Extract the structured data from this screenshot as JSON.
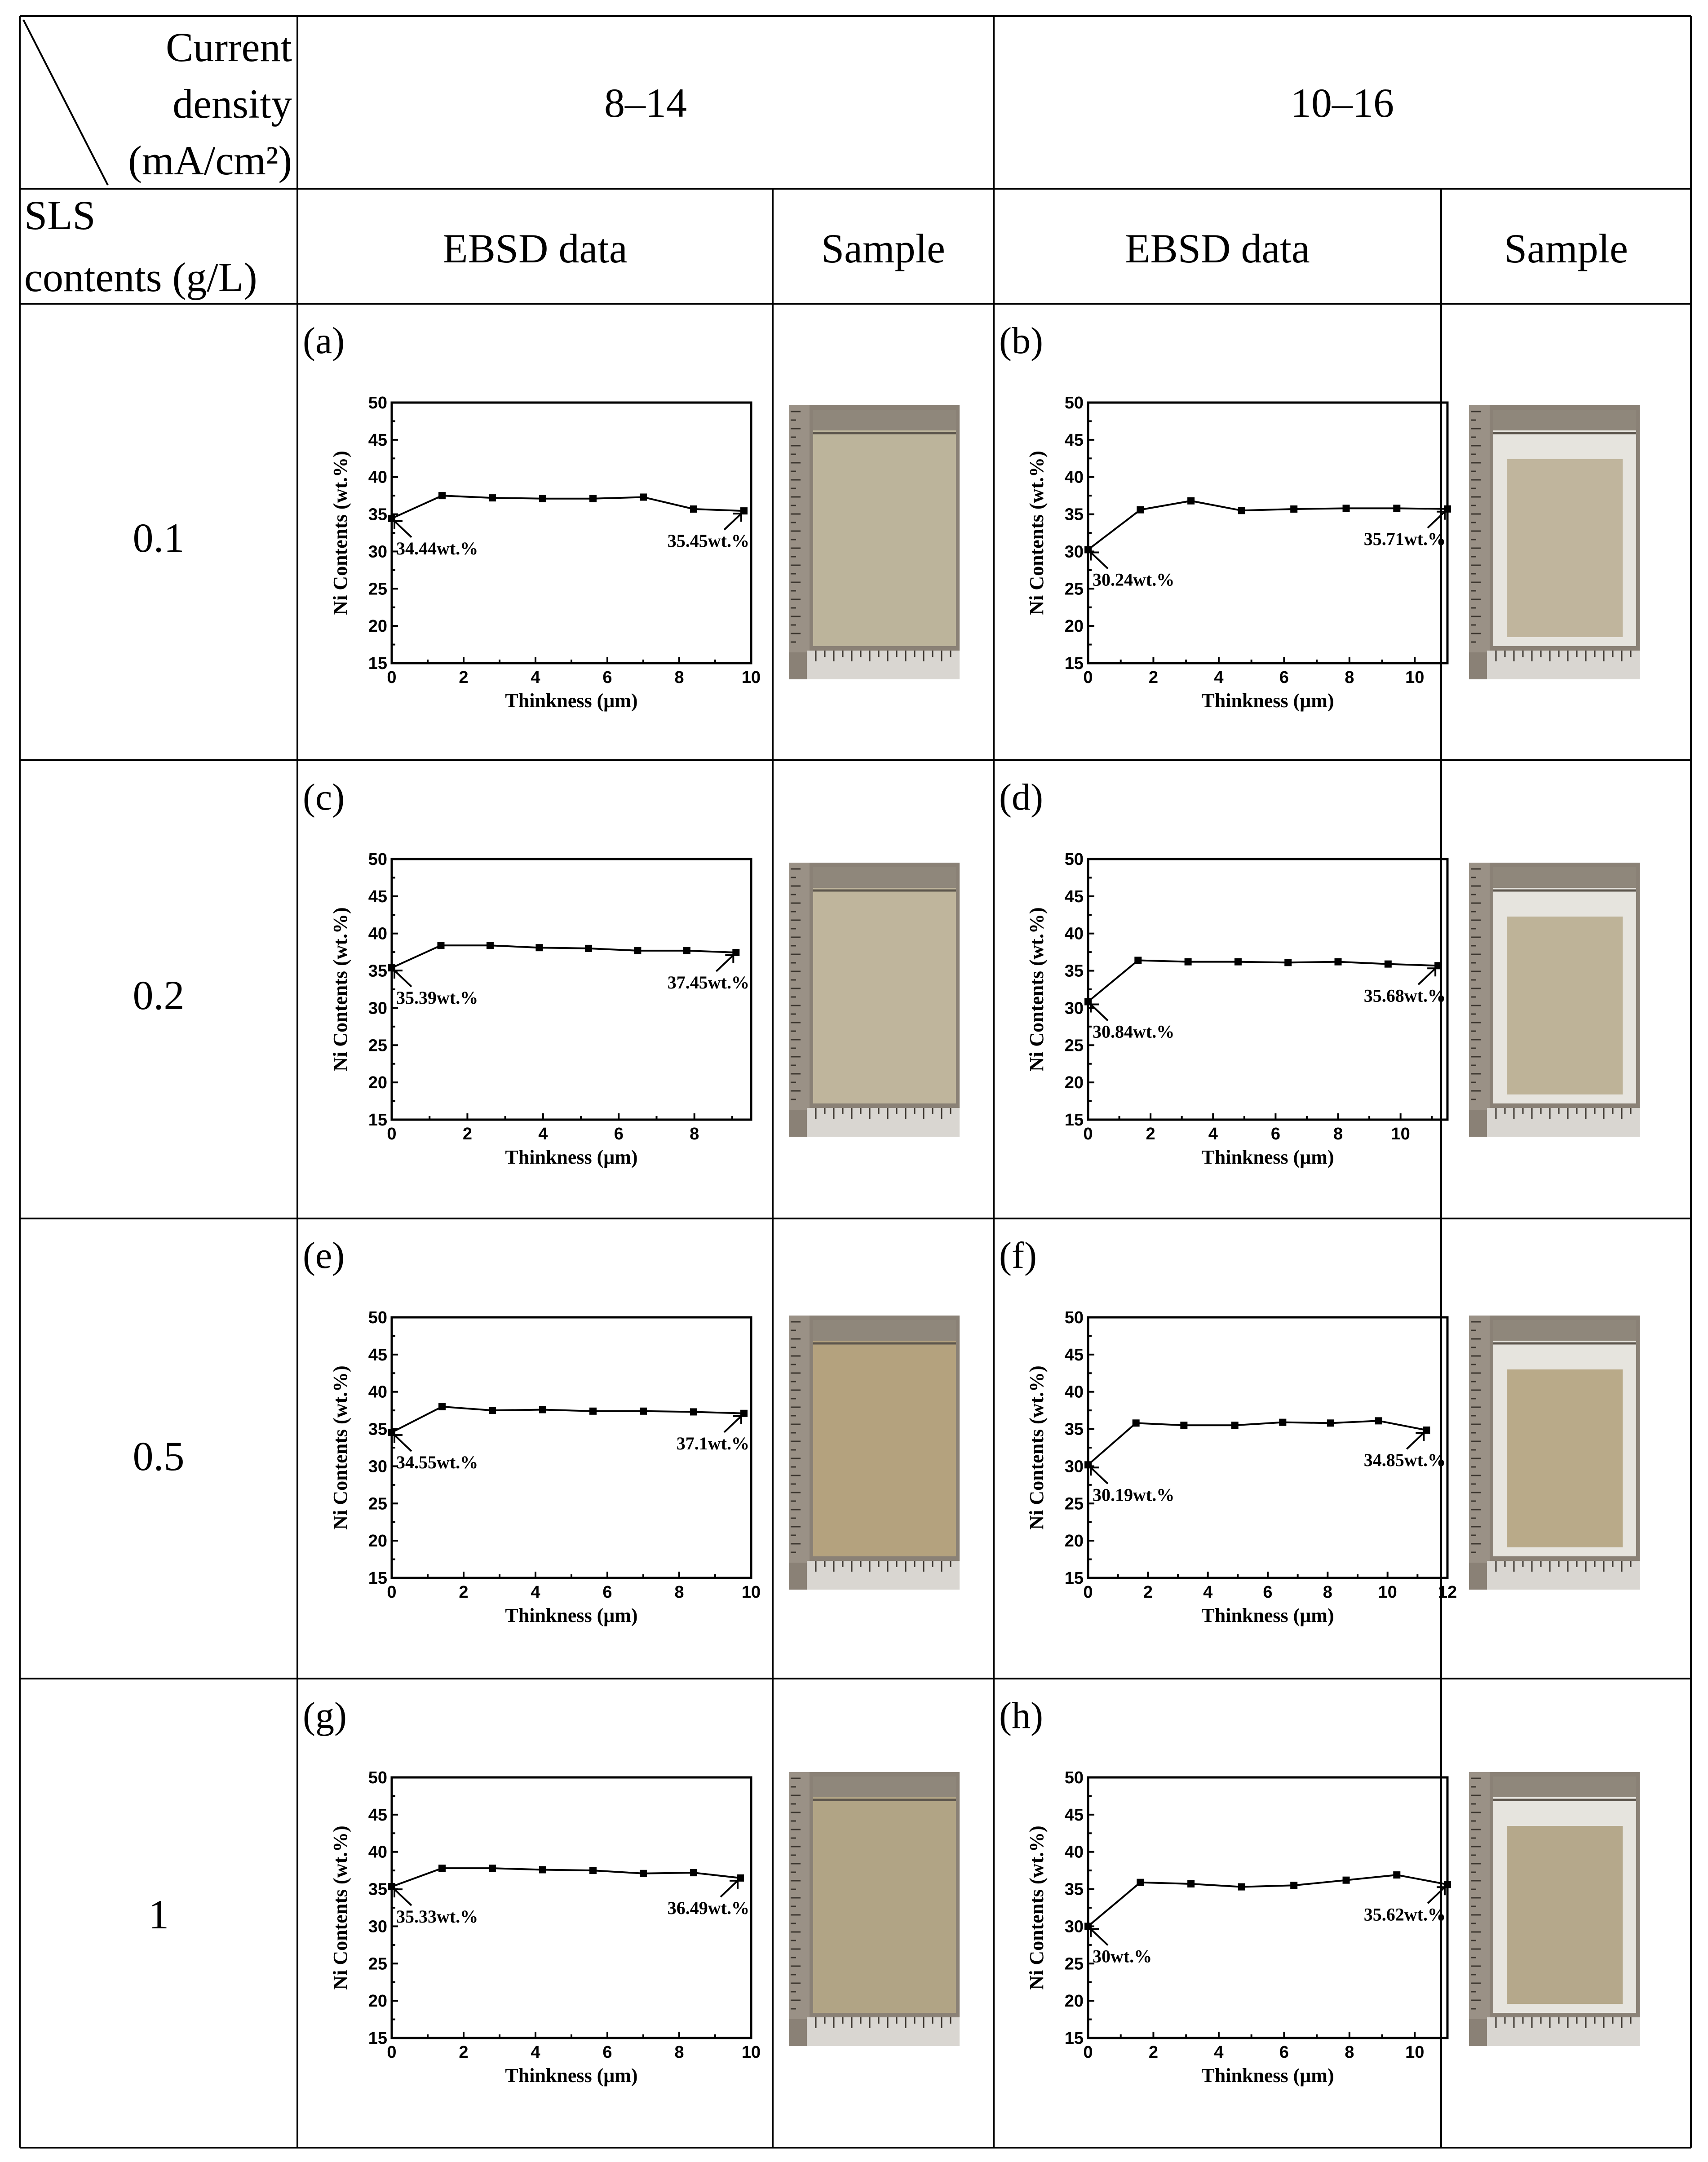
{
  "header": {
    "current_density_label": [
      "Current",
      "density",
      "(mA/cm²)"
    ],
    "density_1": "8–14",
    "density_2": "10–16",
    "sls_label": [
      "SLS",
      "contents (g/L)"
    ],
    "ebsd_label": "EBSD data",
    "sample_label": "Sample"
  },
  "rows": [
    "0.1",
    "0.2",
    "0.5",
    "1"
  ],
  "chart_data": [
    {
      "type": "line",
      "panel": "(a)",
      "xlabel": "Thinkness (μm)",
      "ylabel": "Ni Contents (wt.%)",
      "xlim": [
        0,
        10
      ],
      "ylim": [
        15,
        50
      ],
      "x": [
        0,
        1.4,
        2.8,
        4.2,
        5.6,
        7.0,
        8.4,
        9.8
      ],
      "y": [
        34.44,
        37.5,
        37.2,
        37.1,
        37.1,
        37.3,
        35.7,
        35.45
      ],
      "annotations": [
        "34.44wt.%",
        "35.45wt.%"
      ]
    },
    {
      "type": "line",
      "panel": "(b)",
      "xlabel": "Thinkness (μm)",
      "ylabel": "Ni Contents (wt.%)",
      "xlim": [
        0,
        11
      ],
      "ylim": [
        15,
        50
      ],
      "x": [
        0,
        1.6,
        3.15,
        4.7,
        6.3,
        7.9,
        9.45,
        11.0
      ],
      "y": [
        30.24,
        35.6,
        36.8,
        35.5,
        35.7,
        35.8,
        35.8,
        35.71
      ],
      "annotations": [
        "30.24wt.%",
        "35.71wt.%"
      ]
    },
    {
      "type": "line",
      "panel": "(c)",
      "xlabel": "Thinkness (μm)",
      "ylabel": "Ni Contents (wt.%)",
      "xlim": [
        0,
        9.5
      ],
      "ylim": [
        15,
        50
      ],
      "x": [
        0,
        1.3,
        2.6,
        3.9,
        5.2,
        6.5,
        7.8,
        9.1
      ],
      "y": [
        35.39,
        38.4,
        38.4,
        38.1,
        38.0,
        37.7,
        37.7,
        37.45
      ],
      "annotations": [
        "35.39wt.%",
        "37.45wt.%"
      ]
    },
    {
      "type": "line",
      "panel": "(d)",
      "xlabel": "Thinkness (μm)",
      "ylabel": "Ni Contents (wt.%)",
      "xlim": [
        0,
        11.5
      ],
      "ylim": [
        15,
        50
      ],
      "x": [
        0,
        1.6,
        3.2,
        4.8,
        6.4,
        8.0,
        9.6,
        11.2
      ],
      "y": [
        30.84,
        36.4,
        36.2,
        36.2,
        36.1,
        36.2,
        35.9,
        35.68
      ],
      "annotations": [
        "30.84wt.%",
        "35.68wt.%"
      ]
    },
    {
      "type": "line",
      "panel": "(e)",
      "xlabel": "Thinkness (μm)",
      "ylabel": "Ni Contents (wt.%)",
      "xlim": [
        0,
        10
      ],
      "ylim": [
        15,
        50
      ],
      "x": [
        0,
        1.4,
        2.8,
        4.2,
        5.6,
        7.0,
        8.4,
        9.8
      ],
      "y": [
        34.55,
        38.0,
        37.5,
        37.6,
        37.4,
        37.4,
        37.3,
        37.1
      ],
      "annotations": [
        "34.55wt.%",
        "37.1wt.%"
      ]
    },
    {
      "type": "line",
      "panel": "(f)",
      "xlabel": "Thinkness (μm)",
      "ylabel": "Ni Contents (wt.%)",
      "xlim": [
        0,
        12
      ],
      "ylim": [
        15,
        50
      ],
      "x": [
        0,
        1.6,
        3.2,
        4.9,
        6.5,
        8.1,
        9.7,
        11.3
      ],
      "y": [
        30.19,
        35.8,
        35.5,
        35.5,
        35.9,
        35.8,
        36.1,
        34.85
      ],
      "annotations": [
        "30.19wt.%",
        "34.85wt.%"
      ]
    },
    {
      "type": "line",
      "panel": "(g)",
      "xlabel": "Thinkness (μm)",
      "ylabel": "Ni Contents (wt.%)",
      "xlim": [
        0,
        10
      ],
      "ylim": [
        15,
        50
      ],
      "x": [
        0,
        1.4,
        2.8,
        4.2,
        5.6,
        7.0,
        8.4,
        9.7
      ],
      "y": [
        35.33,
        37.8,
        37.8,
        37.6,
        37.5,
        37.1,
        37.2,
        36.49
      ],
      "annotations": [
        "35.33wt.%",
        "36.49wt.%"
      ]
    },
    {
      "type": "line",
      "panel": "(h)",
      "xlabel": "Thinkness (μm)",
      "ylabel": "Ni Contents (wt.%)",
      "xlim": [
        0,
        11
      ],
      "ylim": [
        15,
        50
      ],
      "x": [
        0,
        1.6,
        3.15,
        4.7,
        6.3,
        7.9,
        9.45,
        11.0
      ],
      "y": [
        30.0,
        35.9,
        35.7,
        35.3,
        35.5,
        36.2,
        36.9,
        35.62
      ],
      "annotations": [
        "30wt.%",
        "35.62wt.%"
      ]
    }
  ],
  "samples": [
    {
      "tone": "#bcb49b",
      "clear": false
    },
    {
      "tone": "#b9ad92",
      "clear": true
    },
    {
      "tone": "#bfb59c",
      "clear": false
    },
    {
      "tone": "#b6aa8c",
      "clear": true
    },
    {
      "tone": "#b4a27e",
      "clear": false
    },
    {
      "tone": "#b0a07a",
      "clear": true
    },
    {
      "tone": "#b1a485",
      "clear": false
    },
    {
      "tone": "#ab9d7c",
      "clear": true
    }
  ]
}
